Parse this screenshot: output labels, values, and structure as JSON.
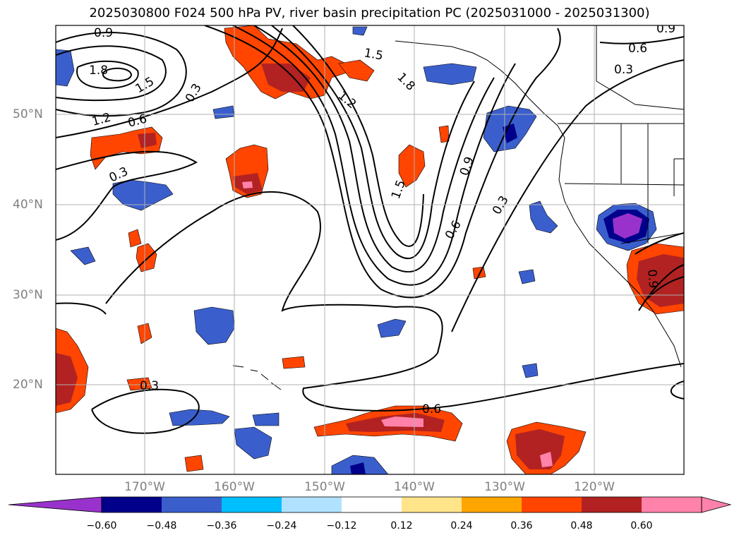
{
  "title": "2025030800 F024 500 hPa PV, river basin precipitation PC (2025031000 - 2025031300)",
  "lat_labels": [
    "50°N",
    "40°N",
    "30°N",
    "20°N"
  ],
  "lon_labels": [
    "170°W",
    "160°W",
    "150°W",
    "140°W",
    "130°W",
    "120°W"
  ],
  "contour_labels": [
    "0.9",
    "1.8",
    "1.5",
    "1.2",
    "0.6",
    "0.3",
    "1.5",
    "1.8",
    "1.2",
    "0.9",
    "0.6",
    "0.3",
    "1.5",
    "0.9",
    "0.6",
    "0.3",
    "0.3",
    "0.3",
    "0.6",
    "0.9"
  ],
  "colorbar": {
    "ticks": [
      "−0.60",
      "−0.48",
      "−0.36",
      "−0.24",
      "−0.12",
      "0.12",
      "0.24",
      "0.36",
      "0.48",
      "0.60"
    ],
    "colors": [
      "#9932cc",
      "#00008b",
      "#3a5fcd",
      "#00bfff",
      "#b0e2ff",
      "#ffffff",
      "#ffe48a",
      "#ffa500",
      "#ff4500",
      "#b22222",
      "#ff82ab",
      "#ff82ab"
    ]
  },
  "colors": {
    "purple": "#9932cc",
    "navy": "#00008b",
    "blue": "#3a5fcd",
    "cyan": "#00bfff",
    "light_blue": "#b0e2ff",
    "yellow": "#ffe48a",
    "orange": "#ffa500",
    "red_orange": "#ff4500",
    "firebrick": "#b22222",
    "pink": "#ff82ab"
  }
}
